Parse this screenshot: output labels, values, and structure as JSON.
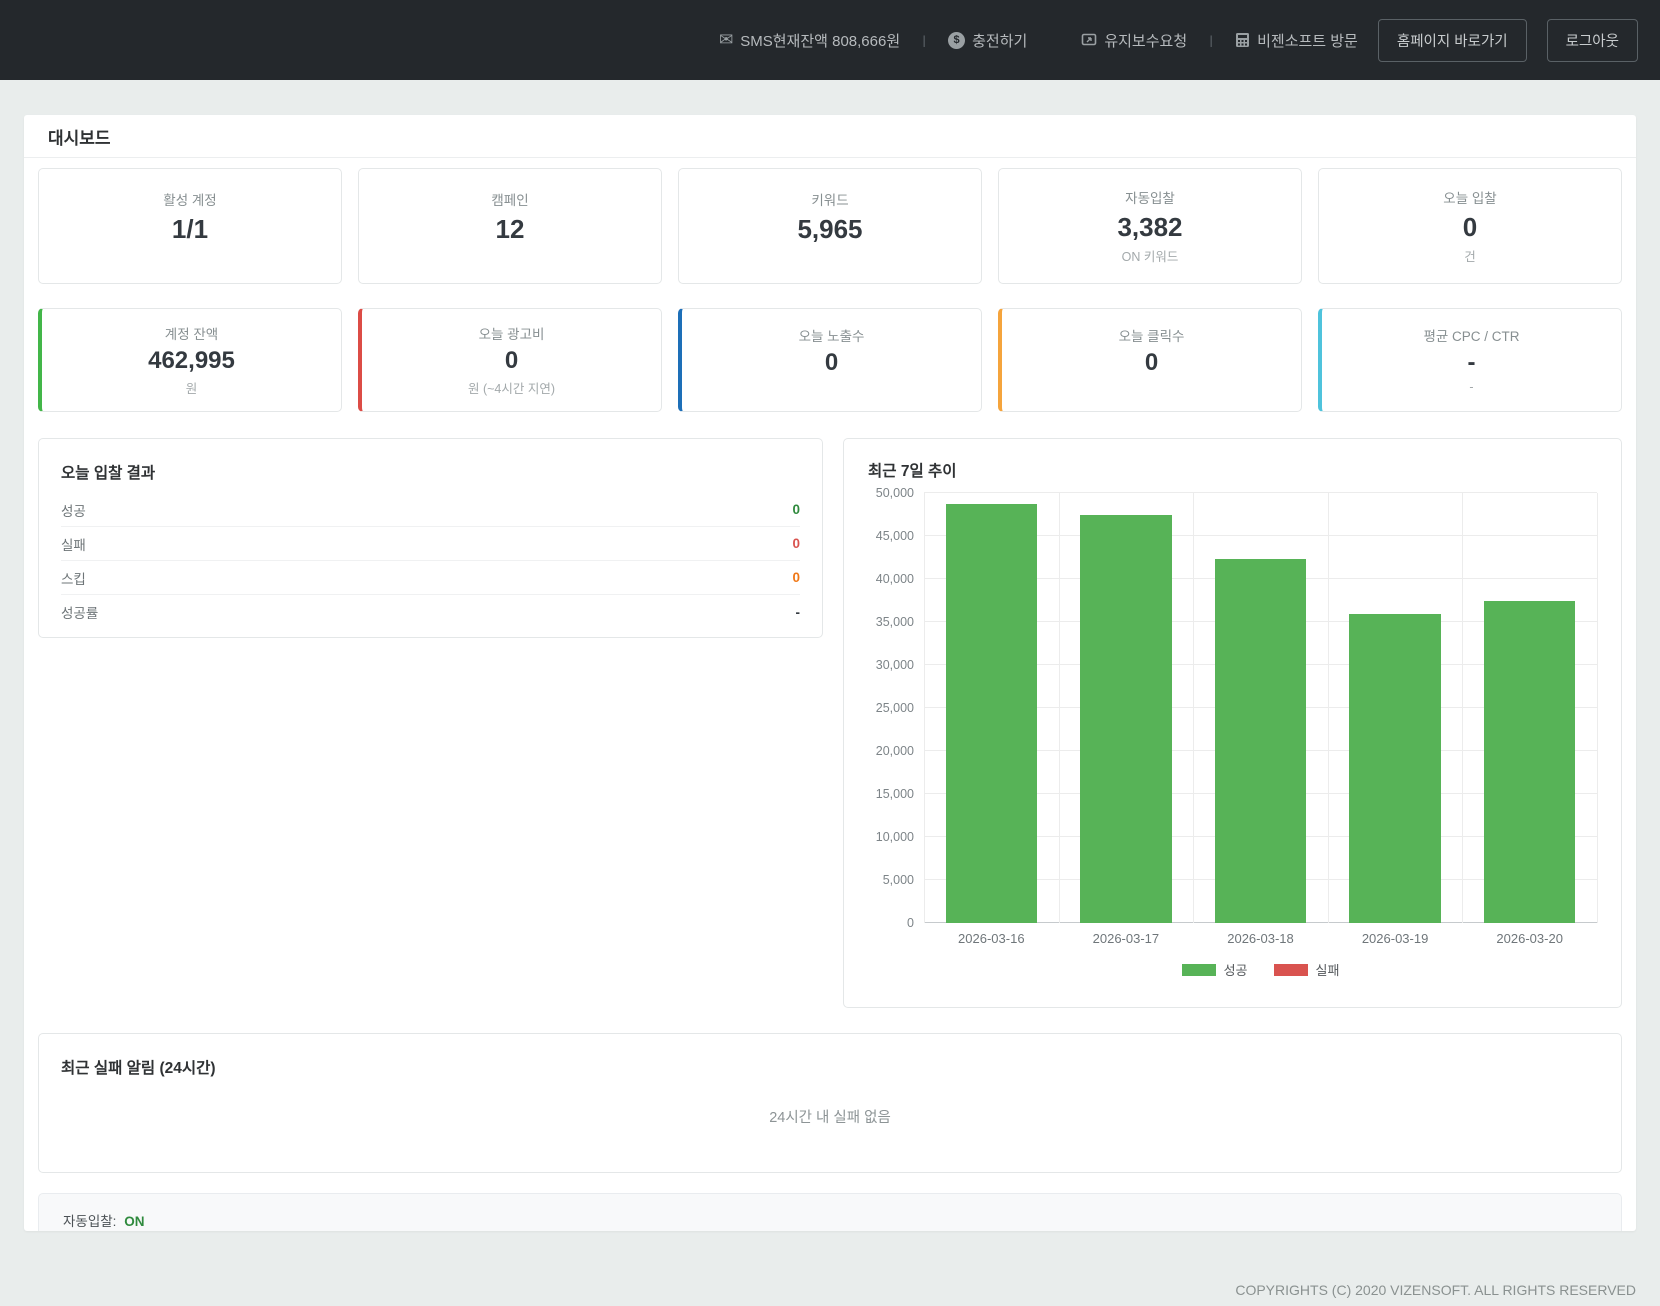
{
  "header": {
    "separator": "ㅣ",
    "sms_balance": "SMS현재잔액 808,666원",
    "recharge": "충전하기",
    "maintenance": "유지보수요청",
    "visit": "비젠소프트 방문",
    "homepage_button": "홈페이지 바로가기",
    "logout_button": "로그아웃"
  },
  "page": {
    "title": "대시보드"
  },
  "summary_cards": [
    {
      "label": "활성 계정",
      "value": "1/1",
      "sub": ""
    },
    {
      "label": "캠페인",
      "value": "12",
      "sub": ""
    },
    {
      "label": "키워드",
      "value": "5,965",
      "sub": ""
    },
    {
      "label": "자동입찰",
      "value": "3,382",
      "sub": "ON 키워드"
    },
    {
      "label": "오늘 입찰",
      "value": "0",
      "sub": "건"
    }
  ],
  "metric_cards": [
    {
      "label": "계정 잔액",
      "value": "462,995",
      "sub": "원",
      "accent": "#43b649"
    },
    {
      "label": "오늘 광고비",
      "value": "0",
      "sub": "원 (~4시간 지연)",
      "accent": "#dc4c46"
    },
    {
      "label": "오늘 노출수",
      "value": "0",
      "sub": "",
      "accent": "#1d6fb8"
    },
    {
      "label": "오늘 클릭수",
      "value": "0",
      "sub": "",
      "accent": "#f5a43c"
    },
    {
      "label": "평균 CPC / CTR",
      "value": "-",
      "sub": "-",
      "accent": "#4fc3dc"
    }
  ],
  "bid_result": {
    "title": "오늘 입찰 결과",
    "rows": [
      {
        "label": "성공",
        "value": "0",
        "color": "#2f8a3d"
      },
      {
        "label": "실패",
        "value": "0",
        "color": "#d9534f"
      },
      {
        "label": "스킵",
        "value": "0",
        "color": "#f07817"
      },
      {
        "label": "성공률",
        "value": "-",
        "color": "#343a40"
      }
    ]
  },
  "chart_data": {
    "type": "bar",
    "title": "최근 7일 추이",
    "categories": [
      "2026-03-16",
      "2026-03-17",
      "2026-03-18",
      "2026-03-19",
      "2026-03-20"
    ],
    "series": [
      {
        "name": "성공",
        "color": "#57b357",
        "values": [
          48700,
          47500,
          42300,
          35900,
          37500
        ]
      },
      {
        "name": "실패",
        "color": "#d9534f",
        "values": [
          0,
          0,
          0,
          0,
          0
        ]
      }
    ],
    "ylim": [
      0,
      50000
    ],
    "ytick_step": 5000,
    "grid": true,
    "legend_position": "bottom"
  },
  "failure_panel": {
    "title": "최근 실패 알림 (24시간)",
    "empty_text": "24시간 내 실패 없음"
  },
  "autobid": {
    "label": "자동입찰:",
    "status": "ON",
    "status_color": "#2f8a3d"
  },
  "footer": {
    "copyright": "COPYRIGHTS (C) 2020 VIZENSOFT. ALL RIGHTS RESERVED"
  }
}
